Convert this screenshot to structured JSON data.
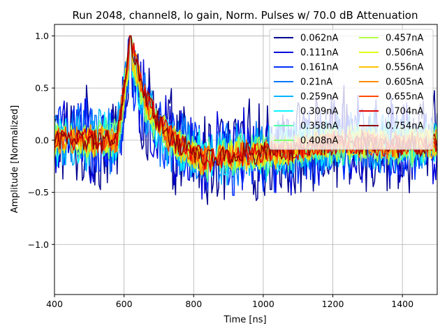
{
  "chart_data": {
    "type": "line",
    "title": "Run 2048, channel8, lo gain, Norm. Pulses w/ 70.0 dB Attenuation",
    "xlabel": "Time [ns]",
    "ylabel": "Amplitude [Normalized]",
    "xlim": [
      400,
      1500
    ],
    "ylim": [
      -1.48,
      1.11
    ],
    "xticks": [
      400,
      600,
      800,
      1000,
      1200,
      1400
    ],
    "xtick_labels": [
      "400",
      "600",
      "800",
      "1000",
      "1200",
      "1400"
    ],
    "yticks": [
      -1.0,
      -0.5,
      0.0,
      0.5,
      1.0
    ],
    "ytick_labels": [
      "−1.0",
      "−0.5",
      "0.0",
      "0.5",
      "1.0"
    ],
    "grid": true,
    "legend_position": "top-right",
    "legend_columns": 2,
    "pulse_peak_time_ns": 618,
    "series": [
      {
        "name": "0.062nA",
        "color": "#00008f",
        "noise_amplitude": 0.55
      },
      {
        "name": "0.111nA",
        "color": "#0000dc",
        "noise_amplitude": 0.48
      },
      {
        "name": "0.161nA",
        "color": "#0030ff",
        "noise_amplitude": 0.42
      },
      {
        "name": "0.21nA",
        "color": "#0074ff",
        "noise_amplitude": 0.37
      },
      {
        "name": "0.259nA",
        "color": "#00b2ff",
        "noise_amplitude": 0.32
      },
      {
        "name": "0.309nA",
        "color": "#0af5ff",
        "noise_amplitude": 0.28
      },
      {
        "name": "0.358nA",
        "color": "#4effa9",
        "noise_amplitude": 0.25
      },
      {
        "name": "0.408nA",
        "color": "#86ff71",
        "noise_amplitude": 0.22
      },
      {
        "name": "0.457nA",
        "color": "#b4ff43",
        "noise_amplitude": 0.2
      },
      {
        "name": "0.506nA",
        "color": "#e2ff15",
        "noise_amplitude": 0.18
      },
      {
        "name": "0.556nA",
        "color": "#ffc400",
        "noise_amplitude": 0.17
      },
      {
        "name": "0.605nA",
        "color": "#ff8c00",
        "noise_amplitude": 0.16
      },
      {
        "name": "0.655nA",
        "color": "#ff4a00",
        "noise_amplitude": 0.15
      },
      {
        "name": "0.704nA",
        "color": "#e30000",
        "noise_amplitude": 0.14
      },
      {
        "name": "0.754nA",
        "color": "#8f0000",
        "noise_amplitude": 0.13
      }
    ]
  }
}
